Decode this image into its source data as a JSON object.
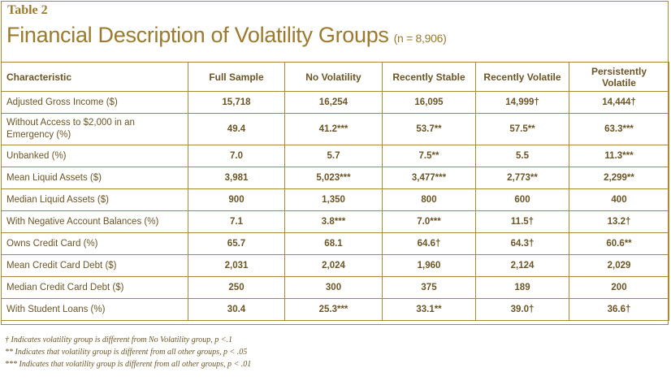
{
  "table_label": "Table 2",
  "title": "Financial Description of Volatility Groups",
  "subtitle": "(n = 8,906)",
  "columns": [
    "Characteristic",
    "Full Sample",
    "No Volatility",
    "Recently Stable",
    "Recently Volatile",
    "Persistently Volatile"
  ],
  "rows": [
    {
      "label": "Adjusted Gross Income ($)",
      "values": [
        "15,718",
        "16,254",
        "16,095",
        "14,999†",
        "14,444†"
      ]
    },
    {
      "label": "Without Access to $2,000 in an Emergency (%)",
      "values": [
        "49.4",
        "41.2***",
        "53.7**",
        "57.5**",
        "63.3***"
      ]
    },
    {
      "label": "Unbanked (%)",
      "values": [
        "7.0",
        "5.7",
        "7.5**",
        "5.5",
        "11.3***"
      ]
    },
    {
      "label": "Mean Liquid Assets ($)",
      "values": [
        "3,981",
        "5,023***",
        "3,477***",
        "2,773**",
        "2,299**"
      ]
    },
    {
      "label": "Median Liquid Assets ($)",
      "values": [
        "900",
        "1,350",
        "800",
        "600",
        "400"
      ]
    },
    {
      "label": "With Negative Account Balances (%)",
      "values": [
        "7.1",
        "3.8***",
        "7.0***",
        "11.5†",
        "13.2†"
      ]
    },
    {
      "label": "Owns Credit Card (%)",
      "values": [
        "65.7",
        "68.1",
        "64.6†",
        "64.3†",
        "60.6**"
      ]
    },
    {
      "label": "Mean Credit Card Debt ($)",
      "values": [
        "2,031",
        "2,024",
        "1,960",
        "2,124",
        "2,029"
      ]
    },
    {
      "label": "Median Credit Card Debt ($)",
      "values": [
        "250",
        "300",
        "375",
        "189",
        "200"
      ]
    },
    {
      "label": "With Student Loans (%)",
      "values": [
        "30.4",
        "25.3***",
        "33.1**",
        "39.0†",
        "36.6†"
      ]
    }
  ],
  "notes": [
    "† Indicates volatility group is different from No Volatility group, p <.1",
    "** Indicates that volatility group is different from all other groups, p < .05",
    "*** Indicates that volatility group is different from all other groups, p < .01"
  ]
}
